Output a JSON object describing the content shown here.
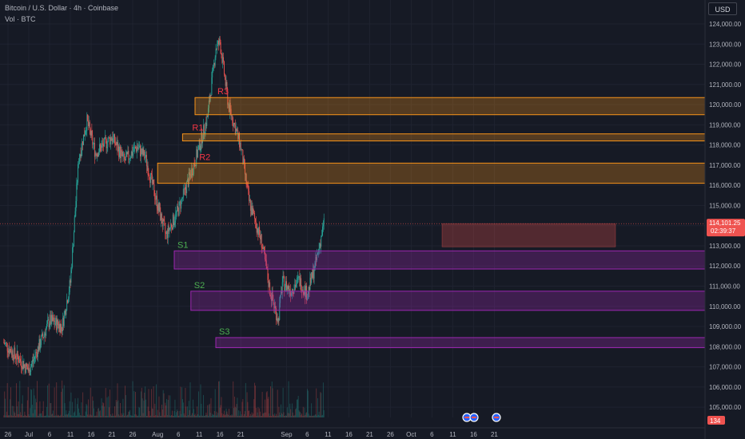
{
  "header": {
    "title": "Bitcoin / U.S. Dollar · 4h · Coinbase",
    "subtitle": "Vol · BTC"
  },
  "currency_button": "USD",
  "price_axis": {
    "ticks": [
      "124,000.00",
      "123,000.00",
      "122,000.00",
      "121,000.00",
      "120,000.00",
      "119,000.00",
      "118,000.00",
      "117,000.00",
      "116,000.00",
      "115,000.00",
      "113,000.00",
      "112,000.00",
      "111,000.00",
      "110,000.00",
      "109,000.00",
      "108,000.00",
      "107,000.00",
      "106,000.00",
      "105,000.00"
    ],
    "current_price": "114,101.25",
    "countdown": "02:39:37",
    "volume_badge": "134"
  },
  "time_axis": {
    "labels": [
      "26",
      "Jul",
      "6",
      "11",
      "16",
      "21",
      "26",
      "Aug",
      "6",
      "11",
      "16",
      "21",
      "Sep",
      "6",
      "11",
      "16",
      "21",
      "26",
      "Oct",
      "6",
      "11",
      "16",
      "21"
    ]
  },
  "zones": [
    {
      "label": "R3",
      "type": "resistance",
      "low": 119500,
      "high": 120350,
      "start": "Aug 10"
    },
    {
      "label": "R1",
      "type": "resistance",
      "low": 118200,
      "high": 118550,
      "start": "Aug 7"
    },
    {
      "label": "R2",
      "type": "resistance",
      "low": 116100,
      "high": 117100,
      "start": "Aug 1"
    },
    {
      "label": "S1",
      "type": "support",
      "low": 111850,
      "high": 112750,
      "start": "Aug 5"
    },
    {
      "label": "S2",
      "type": "support",
      "low": 109800,
      "high": 110750,
      "start": "Aug 9"
    },
    {
      "label": "S3",
      "type": "support",
      "low": 107950,
      "high": 108450,
      "start": "Aug 15"
    }
  ],
  "target_box": {
    "low": 112950,
    "high": 114100
  },
  "colors": {
    "background": "#161a25",
    "up": "#26a69a",
    "down": "#ef5350",
    "resistance": "#f7931a",
    "support": "#9c27b0",
    "resistance_label": "#f23645",
    "support_label": "#4caf50"
  }
}
